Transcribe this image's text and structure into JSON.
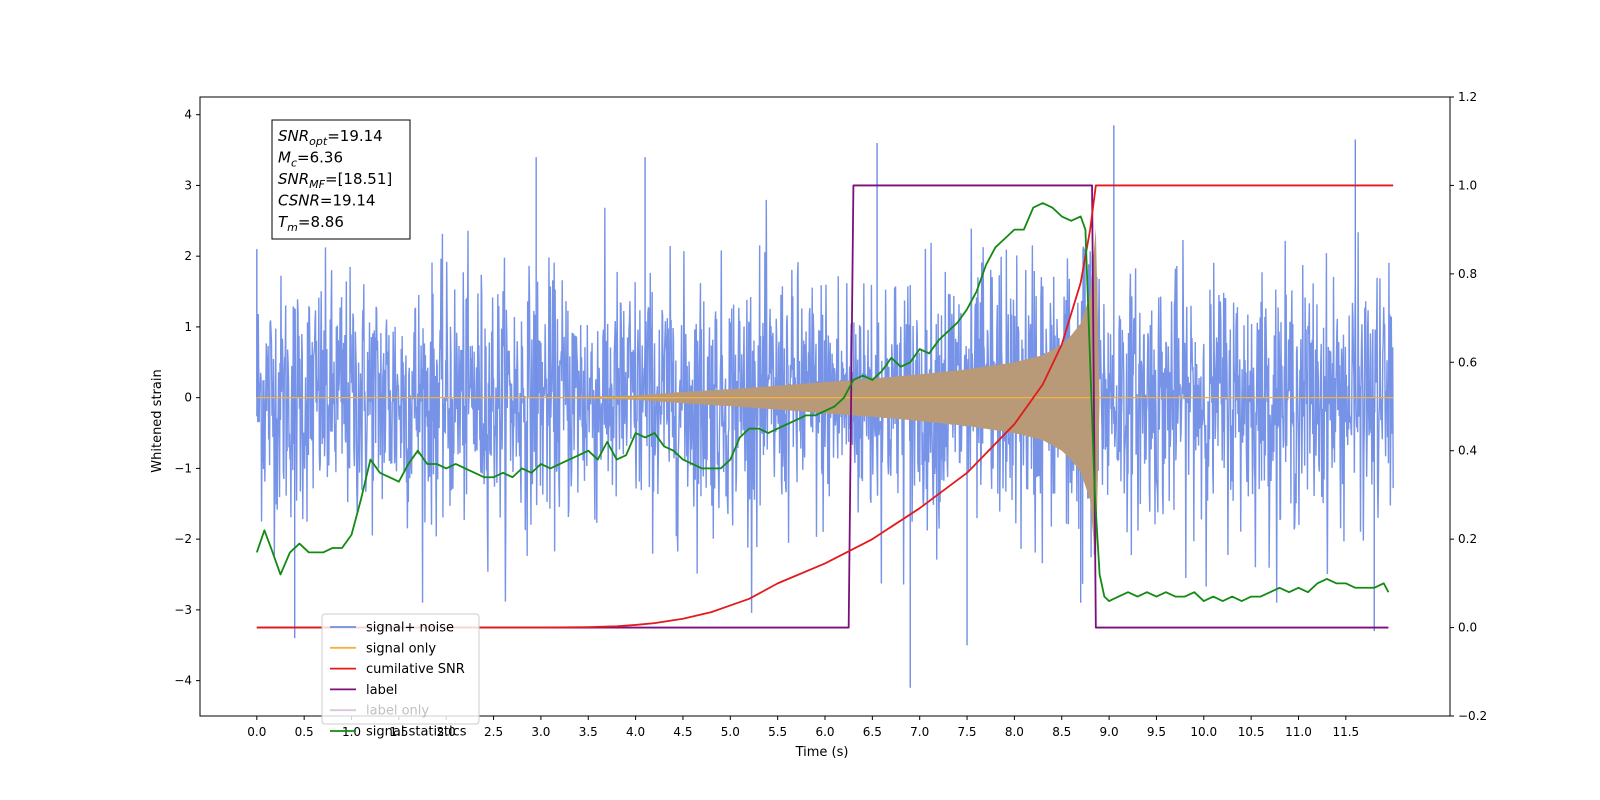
{
  "chart_data": {
    "type": "line",
    "title": "",
    "xlabel": "Time (s)",
    "ylabel": "Whitened strain",
    "y2label": "",
    "xlim": [
      -0.6,
      12.6
    ],
    "ylim": [
      -4.5,
      4.25
    ],
    "y2lim": [
      -0.2,
      1.2
    ],
    "x_ticks": [
      "0.0",
      "0.5",
      "1.0",
      "1.5",
      "2.0",
      "2.5",
      "3.0",
      "3.5",
      "4.0",
      "4.5",
      "5.0",
      "5.5",
      "6.0",
      "6.5",
      "7.0",
      "7.5",
      "8.0",
      "8.5",
      "9.0",
      "9.5",
      "10.0",
      "10.5",
      "11.0",
      "11.5"
    ],
    "y_ticks": [
      "-4",
      "-3",
      "-2",
      "-1",
      "0",
      "1",
      "2",
      "3",
      "4"
    ],
    "y2_ticks": [
      "-0.2",
      "0.0",
      "0.2",
      "0.4",
      "0.6",
      "0.8",
      "1.0",
      "1.2"
    ],
    "grid": false,
    "legend_position": "lower-left",
    "annotation": [
      {
        "name": "SNR",
        "sub": "opt",
        "value": "=19.14"
      },
      {
        "name": "M",
        "sub": "c",
        "value": "=6.36"
      },
      {
        "name": "SNR",
        "sub": "MF",
        "value": "=[18.51]"
      },
      {
        "name": "CSNR",
        "sub": "",
        "value": "=19.14"
      },
      {
        "name": "T",
        "sub": "m",
        "value": "=8.86"
      }
    ],
    "series": [
      {
        "name": "signal+ noise",
        "axis": "left",
        "color": "#6f8de6",
        "noise_sigma": 0.85,
        "peaks": [
          [
            0.0,
            2.1
          ],
          [
            0.4,
            -3.4
          ],
          [
            2.95,
            3.4
          ],
          [
            4.1,
            3.4
          ],
          [
            6.55,
            3.6
          ],
          [
            6.9,
            -4.1
          ],
          [
            7.5,
            -3.5
          ],
          [
            8.7,
            -2.9
          ],
          [
            9.05,
            3.85
          ],
          [
            11.6,
            3.65
          ],
          [
            11.8,
            -3.3
          ]
        ]
      },
      {
        "name": "signal only",
        "axis": "left",
        "color": "#f5b041",
        "fill_color": "#b89a78",
        "envelope_x": [
          0.0,
          3.0,
          4.0,
          4.5,
          5.0,
          5.5,
          6.0,
          6.5,
          7.0,
          7.5,
          8.0,
          8.3,
          8.5,
          8.6,
          8.7,
          8.8,
          8.86,
          8.9,
          12.0
        ],
        "envelope_y": [
          0.0,
          0.0,
          0.03,
          0.08,
          0.12,
          0.17,
          0.22,
          0.27,
          0.33,
          0.4,
          0.5,
          0.6,
          0.75,
          0.88,
          1.05,
          1.45,
          2.4,
          0.0,
          0.0
        ]
      },
      {
        "name": "cumilative SNR",
        "axis": "right",
        "color": "#e31a1c",
        "x": [
          0.0,
          3.0,
          3.5,
          3.8,
          4.0,
          4.2,
          4.5,
          4.8,
          5.0,
          5.2,
          5.5,
          6.0,
          6.5,
          7.0,
          7.5,
          8.0,
          8.3,
          8.5,
          8.7,
          8.8,
          8.86,
          8.88,
          12.0
        ],
        "y": [
          0.0,
          0.0,
          0.001,
          0.003,
          0.006,
          0.01,
          0.02,
          0.035,
          0.05,
          0.065,
          0.1,
          0.145,
          0.2,
          0.27,
          0.35,
          0.46,
          0.55,
          0.64,
          0.78,
          0.9,
          1.0,
          1.0,
          1.0
        ]
      },
      {
        "name": "label",
        "axis": "right",
        "color": "#7b0f7b",
        "x": [
          0.0,
          6.25,
          6.3,
          8.82,
          8.86,
          11.95
        ],
        "y": [
          0.0,
          0.0,
          1.0,
          1.0,
          0.0,
          0.0
        ]
      },
      {
        "name": "label only",
        "axis": "right",
        "color": "#7b0f7b",
        "hidden": true,
        "x": [],
        "y": []
      },
      {
        "name": "signal statistics",
        "axis": "right",
        "color": "#138a13",
        "x": [
          0.0,
          0.08,
          0.15,
          0.25,
          0.35,
          0.45,
          0.55,
          0.7,
          0.8,
          0.9,
          1.0,
          1.1,
          1.2,
          1.3,
          1.4,
          1.5,
          1.6,
          1.7,
          1.8,
          1.9,
          2.0,
          2.1,
          2.2,
          2.3,
          2.4,
          2.5,
          2.6,
          2.7,
          2.8,
          2.9,
          3.0,
          3.1,
          3.2,
          3.3,
          3.4,
          3.5,
          3.6,
          3.7,
          3.8,
          3.9,
          4.0,
          4.1,
          4.2,
          4.3,
          4.4,
          4.5,
          4.6,
          4.7,
          4.8,
          4.9,
          5.0,
          5.1,
          5.2,
          5.3,
          5.4,
          5.5,
          5.6,
          5.7,
          5.8,
          5.9,
          6.0,
          6.1,
          6.2,
          6.3,
          6.4,
          6.5,
          6.6,
          6.7,
          6.8,
          6.9,
          7.0,
          7.1,
          7.2,
          7.3,
          7.4,
          7.5,
          7.6,
          7.7,
          7.8,
          7.9,
          8.0,
          8.1,
          8.2,
          8.3,
          8.4,
          8.5,
          8.6,
          8.7,
          8.75,
          8.8,
          8.85,
          8.9,
          8.95,
          9.0,
          9.1,
          9.2,
          9.3,
          9.4,
          9.5,
          9.6,
          9.7,
          9.8,
          9.9,
          10.0,
          10.1,
          10.2,
          10.3,
          10.4,
          10.5,
          10.6,
          10.7,
          10.8,
          10.9,
          11.0,
          11.1,
          11.2,
          11.3,
          11.4,
          11.5,
          11.6,
          11.7,
          11.8,
          11.9,
          11.95
        ],
        "y": [
          0.17,
          0.22,
          0.18,
          0.12,
          0.17,
          0.19,
          0.17,
          0.17,
          0.18,
          0.18,
          0.21,
          0.29,
          0.38,
          0.35,
          0.34,
          0.33,
          0.37,
          0.4,
          0.37,
          0.37,
          0.36,
          0.37,
          0.36,
          0.35,
          0.34,
          0.34,
          0.35,
          0.34,
          0.36,
          0.35,
          0.37,
          0.36,
          0.37,
          0.38,
          0.39,
          0.4,
          0.38,
          0.42,
          0.38,
          0.39,
          0.44,
          0.43,
          0.44,
          0.41,
          0.4,
          0.38,
          0.37,
          0.36,
          0.36,
          0.36,
          0.38,
          0.43,
          0.45,
          0.45,
          0.44,
          0.45,
          0.46,
          0.47,
          0.48,
          0.48,
          0.49,
          0.5,
          0.52,
          0.56,
          0.57,
          0.56,
          0.58,
          0.61,
          0.59,
          0.6,
          0.63,
          0.62,
          0.65,
          0.67,
          0.69,
          0.72,
          0.76,
          0.82,
          0.86,
          0.88,
          0.9,
          0.9,
          0.95,
          0.96,
          0.95,
          0.93,
          0.92,
          0.93,
          0.9,
          0.6,
          0.3,
          0.12,
          0.07,
          0.06,
          0.07,
          0.08,
          0.07,
          0.08,
          0.07,
          0.08,
          0.07,
          0.07,
          0.08,
          0.06,
          0.07,
          0.06,
          0.07,
          0.06,
          0.07,
          0.07,
          0.08,
          0.09,
          0.08,
          0.09,
          0.08,
          0.1,
          0.11,
          0.1,
          0.1,
          0.09,
          0.09,
          0.09,
          0.1,
          0.08
        ]
      }
    ]
  }
}
